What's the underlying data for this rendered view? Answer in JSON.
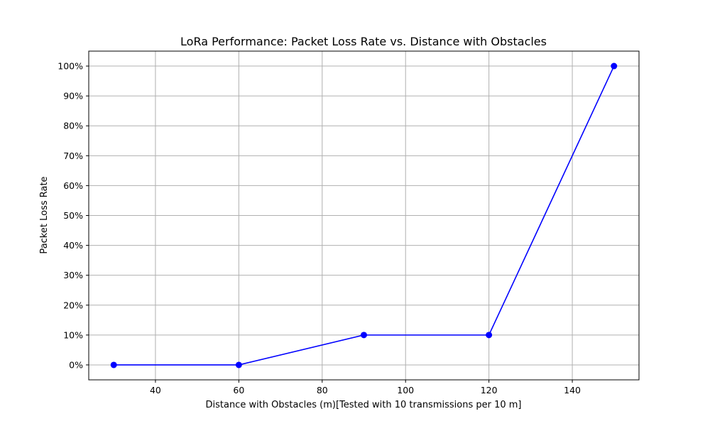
{
  "chart_data": {
    "type": "line",
    "title": "LoRa Performance: Packet Loss Rate vs. Distance with Obstacles",
    "xlabel": "Distance with Obstacles (m)[Tested with 10 transmissions per 10 m]",
    "ylabel": "Packet Loss Rate",
    "xlim": [
      24,
      156
    ],
    "ylim": [
      -5,
      105
    ],
    "xticks": [
      40,
      60,
      80,
      100,
      120,
      140
    ],
    "yticks": [
      0,
      10,
      20,
      30,
      40,
      50,
      60,
      70,
      80,
      90,
      100
    ],
    "ytick_suffix": "%",
    "grid": true,
    "series": [
      {
        "color": "#0000ff",
        "marker": "circle",
        "x": [
          30,
          60,
          90,
          120,
          150
        ],
        "y": [
          0,
          0,
          10,
          10,
          100
        ]
      }
    ]
  }
}
